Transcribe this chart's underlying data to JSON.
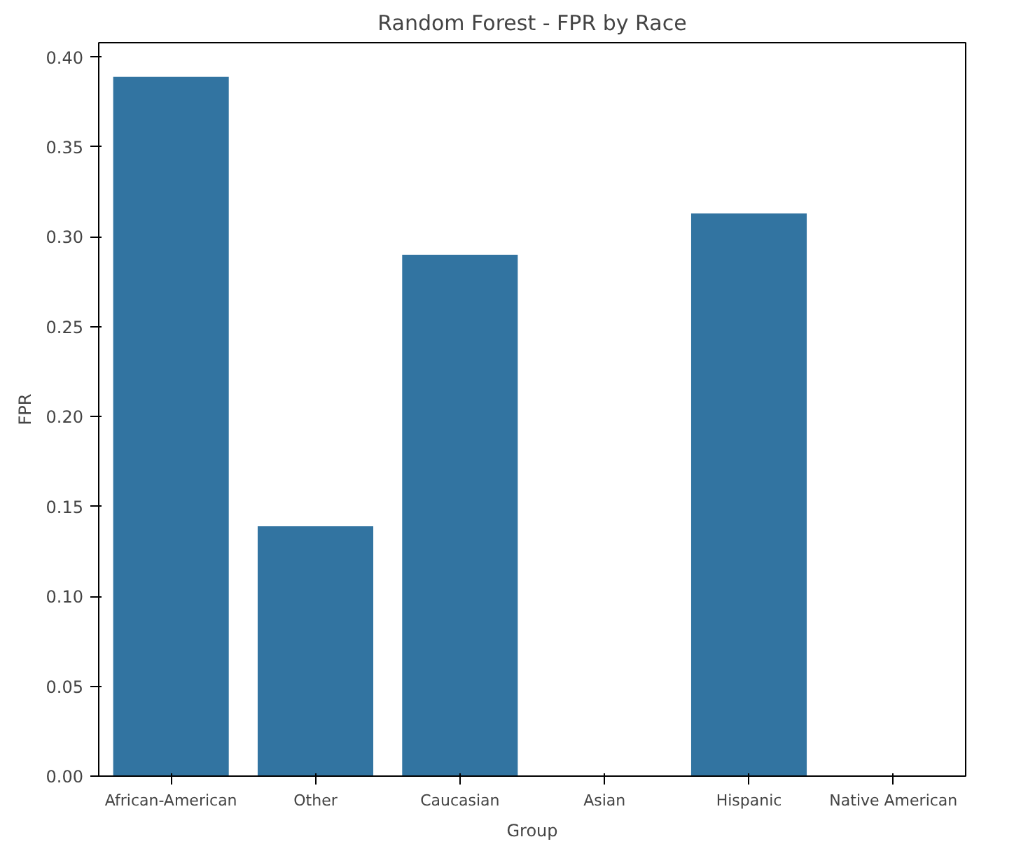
{
  "chart_data": {
    "type": "bar",
    "title": "Random Forest - FPR by Race",
    "xlabel": "Group",
    "ylabel": "FPR",
    "categories": [
      "African-American",
      "Other",
      "Caucasian",
      "Asian",
      "Hispanic",
      "Native American"
    ],
    "values": [
      0.389,
      0.139,
      0.29,
      0,
      0.313,
      0
    ],
    "color": "#3274a1",
    "ylim": [
      0,
      0.408
    ],
    "yticks": [
      {
        "value": 0,
        "label": "0.00"
      },
      {
        "value": 0.05,
        "label": "0.05"
      },
      {
        "value": 0.1,
        "label": "0.10"
      },
      {
        "value": 0.15,
        "label": "0.15"
      },
      {
        "value": 0.2,
        "label": "0.20"
      },
      {
        "value": 0.25,
        "label": "0.25"
      },
      {
        "value": 0.3,
        "label": "0.30"
      },
      {
        "value": 0.35,
        "label": "0.35"
      },
      {
        "value": 0.4,
        "label": "0.40"
      }
    ]
  }
}
